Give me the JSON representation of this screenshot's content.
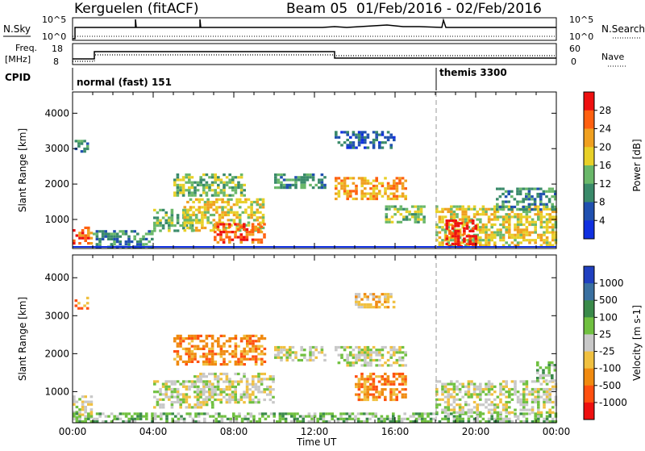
{
  "header": {
    "station": "Kerguelen (fitACF)",
    "beam": "Beam 05",
    "date_range": "01/Feb/2016 - 02/Feb/2016"
  },
  "strips": {
    "nsky_label": "N.Sky",
    "nsky_ticks": [
      "10^5",
      "10^0"
    ],
    "nsearch_label": "N.Search",
    "nsearch_ticks": [
      "10^5",
      "10^0"
    ],
    "freq_label_1": "Freq.",
    "freq_label_2": "[MHz]",
    "freq_ticks": [
      "18",
      "8"
    ],
    "nave_label": "Nave",
    "nave_ticks": [
      "60",
      "0"
    ],
    "cpid_label": "CPID",
    "cpid_segments": [
      {
        "label": "normal (fast) 151",
        "start_hour": 0,
        "end_hour": 18
      },
      {
        "label": "themis 3300",
        "start_hour": 18,
        "end_hour": 24
      }
    ]
  },
  "chart_data": [
    {
      "type": "heatmap",
      "name": "power-panel",
      "ylabel": "Slant Range [km]",
      "xlabel": "Time UT",
      "xlim": [
        0,
        24
      ],
      "ylim": [
        180,
        4600
      ],
      "xticks": [
        "00:00",
        "04:00",
        "08:00",
        "12:00",
        "16:00",
        "20:00",
        "00:00"
      ],
      "yticks": [
        1000,
        2000,
        3000,
        4000
      ],
      "colorbar": {
        "label": "Power [dB]",
        "ticks": [
          "4",
          "8",
          "12",
          "16",
          "20",
          "24",
          "28"
        ],
        "colors": [
          "#1030e0",
          "#2050b0",
          "#3a8a6a",
          "#6ab86a",
          "#e8d028",
          "#f0a020",
          "#ff6010",
          "#ee1010"
        ]
      },
      "regions": [
        {
          "hours": [
            0.0,
            1.0
          ],
          "ranges": [
            300,
            800
          ],
          "level": 6
        },
        {
          "hours": [
            0.1,
            0.8
          ],
          "ranges": [
            2900,
            3250
          ],
          "level": 2
        },
        {
          "hours": [
            1.0,
            4.0
          ],
          "ranges": [
            250,
            700
          ],
          "level": 2
        },
        {
          "hours": [
            4.0,
            6.0
          ],
          "ranges": [
            700,
            1300
          ],
          "level": 3
        },
        {
          "hours": [
            5.0,
            8.5
          ],
          "ranges": [
            1700,
            2300
          ],
          "level": 3
        },
        {
          "hours": [
            5.5,
            9.5
          ],
          "ranges": [
            700,
            1600
          ],
          "level": 4
        },
        {
          "hours": [
            7.0,
            9.5
          ],
          "ranges": [
            350,
            900
          ],
          "level": 6
        },
        {
          "hours": [
            10.0,
            12.5
          ],
          "ranges": [
            1900,
            2300
          ],
          "level": 2
        },
        {
          "hours": [
            13.0,
            16.5
          ],
          "ranges": [
            1600,
            2200
          ],
          "level": 5
        },
        {
          "hours": [
            13.0,
            16.0
          ],
          "ranges": [
            3000,
            3500
          ],
          "level": 1
        },
        {
          "hours": [
            15.5,
            17.5
          ],
          "ranges": [
            900,
            1400
          ],
          "level": 3
        },
        {
          "hours": [
            18.0,
            24.0
          ],
          "ranges": [
            250,
            1400
          ],
          "level": 4
        },
        {
          "hours": [
            18.5,
            20.0
          ],
          "ranges": [
            250,
            1000
          ],
          "level": 7
        },
        {
          "hours": [
            21.0,
            24.0
          ],
          "ranges": [
            1300,
            1900
          ],
          "level": 2
        }
      ]
    },
    {
      "type": "heatmap",
      "name": "velocity-panel",
      "ylabel": "Slant Range [km]",
      "xlabel": "Time UT",
      "xlim": [
        0,
        24
      ],
      "ylim": [
        180,
        4600
      ],
      "xticks": [
        "00:00",
        "04:00",
        "08:00",
        "12:00",
        "16:00",
        "20:00",
        "00:00"
      ],
      "yticks": [
        1000,
        2000,
        3000,
        4000
      ],
      "colorbar": {
        "label": "Velocity [m s-1]",
        "ticks": [
          "1000",
          "500",
          "100",
          "25",
          "-25",
          "-100",
          "-500",
          "-1000"
        ],
        "colors": [
          "#2040c0",
          "#3a70a0",
          "#3a8a4a",
          "#70c040",
          "#c8c8c8",
          "#f0c040",
          "#f08a10",
          "#ff5010",
          "#ee1010"
        ]
      },
      "regions": [
        {
          "hours": [
            0.0,
            1.0
          ],
          "ranges": [
            300,
            900
          ],
          "level": 4
        },
        {
          "hours": [
            0.1,
            0.8
          ],
          "ranges": [
            3200,
            3500
          ],
          "level": 6
        },
        {
          "hours": [
            0.0,
            24.0
          ],
          "ranges": [
            200,
            450
          ],
          "level": 3
        },
        {
          "hours": [
            4.0,
            7.0
          ],
          "ranges": [
            600,
            1300
          ],
          "level": 4
        },
        {
          "hours": [
            5.0,
            9.5
          ],
          "ranges": [
            1700,
            2500
          ],
          "level": 6
        },
        {
          "hours": [
            6.0,
            10.0
          ],
          "ranges": [
            700,
            1500
          ],
          "level": 4
        },
        {
          "hours": [
            10.0,
            12.5
          ],
          "ranges": [
            1800,
            2200
          ],
          "level": 4
        },
        {
          "hours": [
            13.0,
            16.5
          ],
          "ranges": [
            1700,
            2200
          ],
          "level": 4
        },
        {
          "hours": [
            14.0,
            16.0
          ],
          "ranges": [
            3200,
            3600
          ],
          "level": 5
        },
        {
          "hours": [
            14.0,
            16.5
          ],
          "ranges": [
            800,
            1500
          ],
          "level": 6
        },
        {
          "hours": [
            18.0,
            24.0
          ],
          "ranges": [
            450,
            1300
          ],
          "level": 4
        },
        {
          "hours": [
            23.0,
            24.0
          ],
          "ranges": [
            1300,
            1800
          ],
          "level": 3
        }
      ]
    }
  ]
}
